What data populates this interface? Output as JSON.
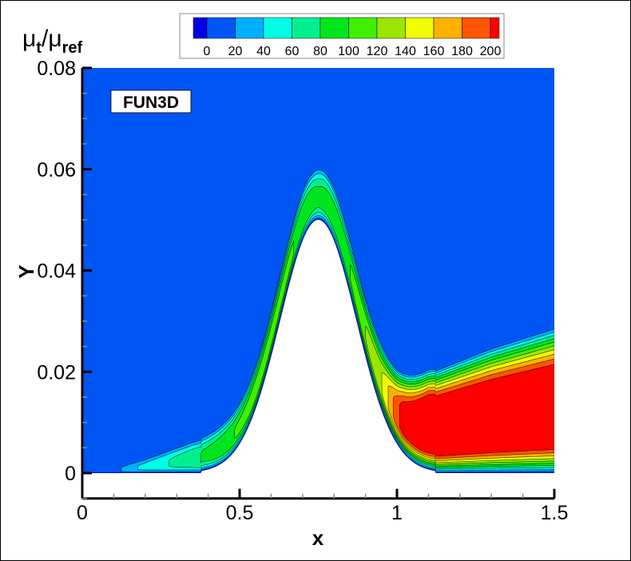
{
  "chart_data": {
    "type": "heatmap",
    "subtype": "filled-contour",
    "legend_title": {
      "main": "μ",
      "sub1": "t",
      "slash": "/",
      "main2": "μ",
      "sub2": "ref"
    },
    "annotation": "FUN3D",
    "xlabel": "x",
    "ylabel": "Y",
    "xlim": [
      0,
      1.5
    ],
    "ylim": [
      -0.005,
      0.08
    ],
    "x_ticks": [
      0,
      0.5,
      1,
      1.5
    ],
    "x_tick_labels": [
      "0",
      "0.5",
      "1",
      "1.5"
    ],
    "y_ticks": [
      0,
      0.02,
      0.04,
      0.06,
      0.08
    ],
    "y_tick_labels": [
      "0",
      "0.02",
      "0.04",
      "0.06",
      "0.08"
    ],
    "x_minor_step": 0.1,
    "y_minor_step": 0.005,
    "legend_placement": "top",
    "contour_levels": [
      0,
      20,
      40,
      60,
      80,
      100,
      120,
      140,
      160,
      180,
      200
    ],
    "legend_labels": [
      "0",
      "20",
      "40",
      "60",
      "80",
      "100",
      "120",
      "140",
      "160",
      "180",
      "200"
    ],
    "band_colors": [
      "#0000e6",
      "#0055f5",
      "#00b0ff",
      "#00ffe6",
      "#00f090",
      "#00e61e",
      "#40f000",
      "#9ae600",
      "#f0ff00",
      "#ffb000",
      "#ff5500",
      "#ff0000"
    ],
    "bump": {
      "peak_x": 0.75,
      "peak_y": 0.05
    },
    "peak_value_profile": {
      "x": [
        0,
        0.08,
        0.15,
        0.25,
        0.35,
        0.45,
        0.55,
        0.65,
        0.75,
        0.85,
        0.95,
        1.02,
        1.1,
        1.5
      ],
      "value": [
        0,
        0,
        35,
        55,
        75,
        95,
        110,
        105,
        85,
        100,
        140,
        215,
        260,
        260
      ]
    },
    "outer_edge_thickness": {
      "x": [
        0,
        0.08,
        0.2,
        0.35,
        0.45,
        0.6,
        0.75,
        0.9,
        1.0,
        1.1,
        1.3,
        1.5
      ],
      "value": [
        0.0008,
        0.0008,
        0.003,
        0.0065,
        0.008,
        0.0095,
        0.0105,
        0.012,
        0.015,
        0.02,
        0.025,
        0.029
      ]
    }
  }
}
